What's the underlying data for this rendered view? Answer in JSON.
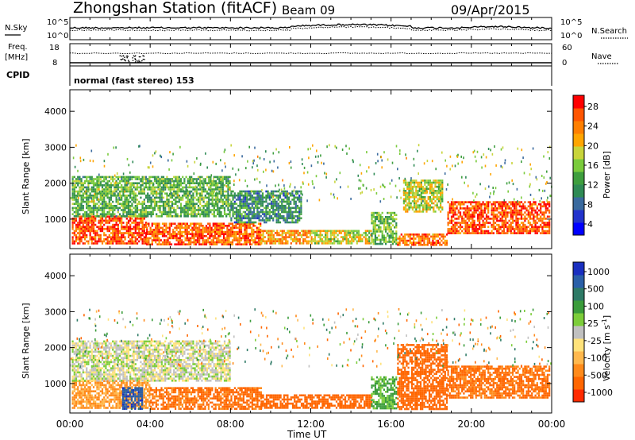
{
  "header": {
    "station": "Zhongshan Station (fitACF)",
    "beam": "Beam 09",
    "date": "09/Apr/2015"
  },
  "top_panel": {
    "left_label": "N.Sky",
    "right_label": "N.Search",
    "left_ticks": [
      "10^5",
      "10^0"
    ],
    "right_ticks": [
      "10^5",
      "10^0"
    ]
  },
  "freq_panel": {
    "left_label_1": "Freq.",
    "left_label_2": "[MHz]",
    "right_label": "Nave",
    "left_ticks": [
      "18",
      "8"
    ],
    "right_ticks": [
      "60",
      "0"
    ]
  },
  "cpid": {
    "label": "CPID",
    "text": "normal (fast stereo) 153"
  },
  "chart_data": [
    {
      "type": "heatmap",
      "title": "",
      "quantity": "Power",
      "ylabel": "Slant Range [km]",
      "xlabel": "",
      "x_range_hours": [
        0,
        24
      ],
      "ylim": [
        180,
        4600
      ],
      "y_ticks": [
        1000,
        2000,
        3000,
        4000
      ],
      "colorbar": {
        "label": "Power [dB]",
        "tick_labels": [
          "4",
          "8",
          "12",
          "16",
          "20",
          "24",
          "28"
        ],
        "range": [
          0,
          30
        ],
        "colors": [
          "#0000ff",
          "#2233cc",
          "#3a6a9e",
          "#2f8a55",
          "#3e9e3e",
          "#7acb3c",
          "#c8d43a",
          "#ffa500",
          "#ff7f00",
          "#ff5500",
          "#ff0000"
        ]
      },
      "echo_regions": [
        {
          "t0": 0.1,
          "t1": 3.8,
          "r0": 300,
          "r1": 1100,
          "value": 26
        },
        {
          "t0": 3.8,
          "t1": 9.5,
          "r0": 300,
          "r1": 900,
          "value": 25
        },
        {
          "t0": 9.5,
          "t1": 12.0,
          "r0": 300,
          "r1": 700,
          "value": 22
        },
        {
          "t0": 12.0,
          "t1": 15.0,
          "r0": 300,
          "r1": 700,
          "value": 18
        },
        {
          "t0": 15.0,
          "t1": 16.3,
          "r0": 300,
          "r1": 1200,
          "value": 14
        },
        {
          "t0": 16.3,
          "t1": 18.8,
          "r0": 300,
          "r1": 600,
          "value": 24
        },
        {
          "t0": 16.6,
          "t1": 18.6,
          "r0": 1200,
          "r1": 2100,
          "value": 17
        },
        {
          "t0": 18.8,
          "t1": 23.9,
          "r0": 600,
          "r1": 1500,
          "value": 26
        },
        {
          "t0": 0.1,
          "t1": 8.0,
          "r0": 1100,
          "r1": 2200,
          "value": 13
        },
        {
          "t0": 8.0,
          "t1": 11.5,
          "r0": 900,
          "r1": 1800,
          "value": 10
        }
      ]
    },
    {
      "type": "heatmap",
      "title": "",
      "quantity": "Velocity",
      "ylabel": "Slant Range [km]",
      "xlabel": "Time UT",
      "x_range_hours": [
        0,
        24
      ],
      "x_tick_labels": [
        "00:00",
        "04:00",
        "08:00",
        "12:00",
        "16:00",
        "20:00",
        "00:00"
      ],
      "ylim": [
        180,
        4600
      ],
      "y_ticks": [
        1000,
        2000,
        3000,
        4000
      ],
      "colorbar": {
        "label": "Velocity [m s^-1]",
        "tick_labels": [
          "1000",
          "500",
          "100",
          "25",
          "-25",
          "-100",
          "-500",
          "-1000"
        ],
        "colors": [
          "#1a2fc0",
          "#2a5fa8",
          "#2e7a66",
          "#3b9c3b",
          "#7ccd3a",
          "#c0c0c0",
          "#ffe27a",
          "#ffb84d",
          "#ff8a1a",
          "#ff6600",
          "#ff2a00"
        ]
      },
      "echo_regions": [
        {
          "t0": 0.1,
          "t1": 4.0,
          "r0": 300,
          "r1": 1100,
          "value": -60
        },
        {
          "t0": 4.0,
          "t1": 9.5,
          "r0": 300,
          "r1": 900,
          "value": -120
        },
        {
          "t0": 9.5,
          "t1": 15.0,
          "r0": 300,
          "r1": 700,
          "value": -300
        },
        {
          "t0": 15.0,
          "t1": 16.3,
          "r0": 300,
          "r1": 1200,
          "value": 60
        },
        {
          "t0": 16.3,
          "t1": 18.8,
          "r0": 300,
          "r1": 2100,
          "value": -250
        },
        {
          "t0": 18.8,
          "t1": 23.9,
          "r0": 600,
          "r1": 1500,
          "value": -120
        },
        {
          "t0": 0.1,
          "t1": 8.0,
          "r0": 1100,
          "r1": 2200,
          "value": 10
        },
        {
          "t0": 2.6,
          "t1": 3.6,
          "r0": 300,
          "r1": 900,
          "value": 800
        }
      ]
    }
  ]
}
